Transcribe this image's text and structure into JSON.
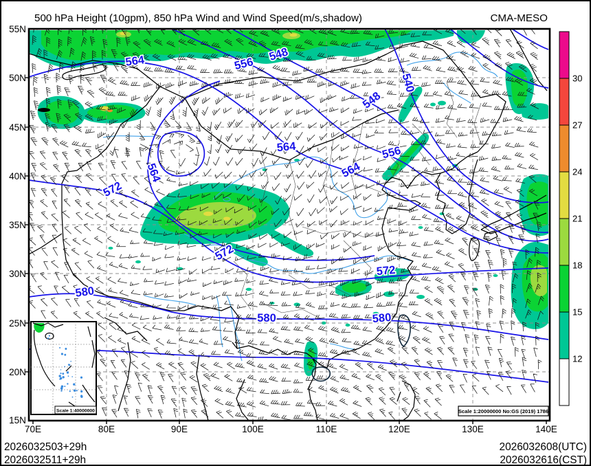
{
  "header": {
    "title": "500 hPa Height (10gpm), 850 hPa Wind and Wind Speed(m/s,shadow)",
    "model": "CMA-MESO"
  },
  "footer": {
    "left_line1": "2026032503+29h",
    "left_line2": "2026032511+29h",
    "right_line1": "2026032608(UTC)",
    "right_line2": "2026032616(CST)"
  },
  "axes": {
    "lat": [
      "55N",
      "50N",
      "45N",
      "40N",
      "35N",
      "30N",
      "25N",
      "20N",
      "15N"
    ],
    "lon": [
      "70E",
      "80E",
      "90E",
      "100E",
      "110E",
      "120E",
      "130E",
      "140E"
    ]
  },
  "colorbar": {
    "ticks": [
      "30",
      "27",
      "24",
      "21",
      "18",
      "15",
      "12"
    ],
    "colors_top_to_bottom": [
      "#EC0B8B",
      "#F4463C",
      "#EE8B2D",
      "#E3DC41",
      "#9CDA3F",
      "#0BD334",
      "#00C795",
      "#FFFFFF"
    ]
  },
  "contour_labels": [
    "564",
    "556",
    "548",
    "548",
    "540",
    "556",
    "564",
    "564",
    "564",
    "572",
    "572",
    "572",
    "580",
    "580",
    "580"
  ],
  "contour_levels_gpm": [
    "540",
    "548",
    "556",
    "564",
    "572",
    "580"
  ],
  "scales": {
    "inset": "Scale 1:40000000",
    "main": "Scale 1:20000000 No:GS (2019) 1786"
  }
}
